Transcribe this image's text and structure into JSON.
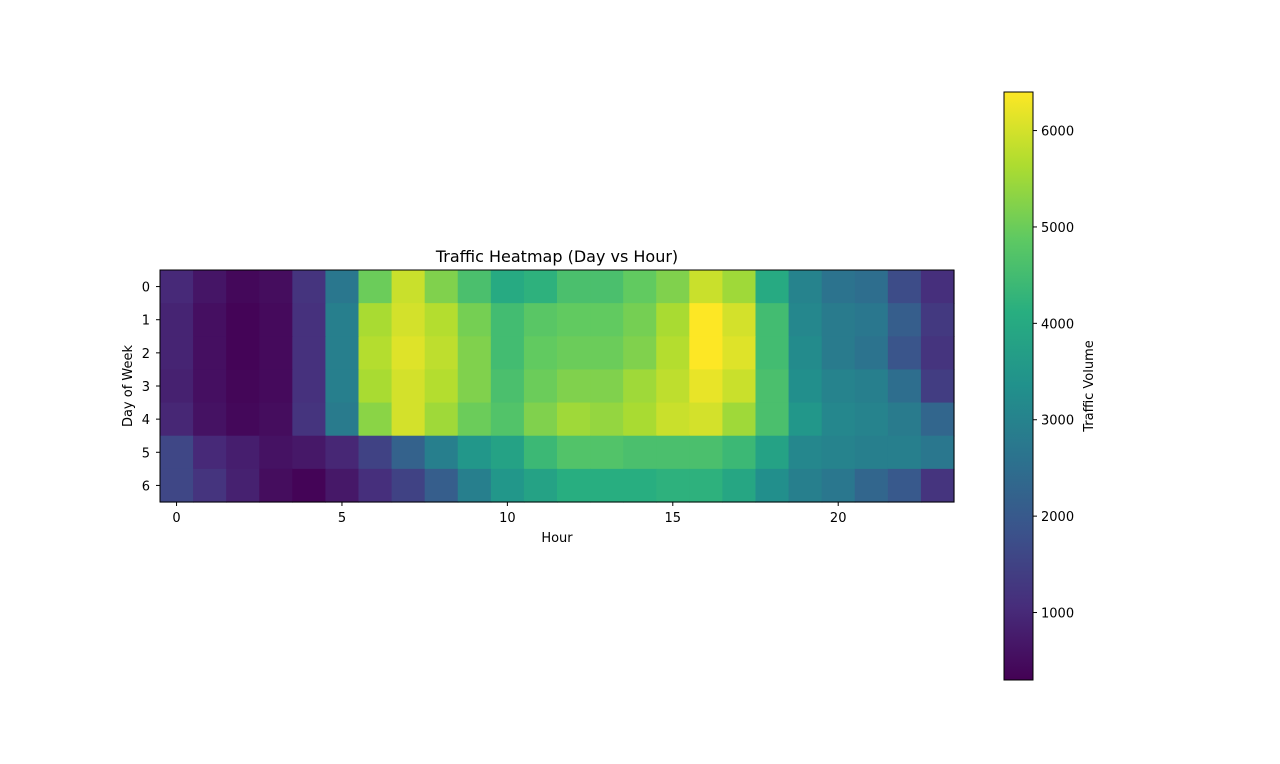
{
  "chart_data": {
    "type": "heatmap",
    "title": "Traffic Heatmap (Day vs Hour)",
    "xlabel": "Hour",
    "ylabel": "Day of Week",
    "x": [
      0,
      1,
      2,
      3,
      4,
      5,
      6,
      7,
      8,
      9,
      10,
      11,
      12,
      13,
      14,
      15,
      16,
      17,
      18,
      19,
      20,
      21,
      22,
      23
    ],
    "y": [
      0,
      1,
      2,
      3,
      4,
      5,
      6
    ],
    "x_ticks": [
      "0",
      "5",
      "10",
      "15",
      "20"
    ],
    "x_tick_values": [
      0,
      5,
      10,
      15,
      20
    ],
    "y_ticks": [
      "0",
      "1",
      "2",
      "3",
      "4",
      "5",
      "6"
    ],
    "values": [
      [
        1000,
        650,
        420,
        500,
        1200,
        2700,
        5000,
        5900,
        5200,
        4600,
        4000,
        4200,
        4600,
        4600,
        4900,
        5200,
        5900,
        5500,
        4000,
        3000,
        2600,
        2500,
        1700,
        1100
      ],
      [
        900,
        550,
        350,
        450,
        1150,
        2900,
        5600,
        6000,
        5700,
        5100,
        4500,
        4800,
        4900,
        4900,
        5100,
        5600,
        6400,
        6000,
        4500,
        3100,
        2800,
        2700,
        2100,
        1300
      ],
      [
        900,
        550,
        350,
        450,
        1150,
        2900,
        5700,
        6100,
        5800,
        5200,
        4500,
        4900,
        5000,
        5000,
        5200,
        5700,
        6400,
        6100,
        4500,
        3200,
        2800,
        2600,
        1900,
        1200
      ],
      [
        850,
        550,
        380,
        450,
        1150,
        2900,
        5600,
        6000,
        5700,
        5200,
        4600,
        5000,
        5200,
        5200,
        5500,
        5800,
        6200,
        5900,
        4600,
        3300,
        3000,
        2900,
        2500,
        1400
      ],
      [
        950,
        600,
        420,
        500,
        1200,
        2800,
        5300,
        6000,
        5500,
        5000,
        4700,
        5200,
        5500,
        5400,
        5600,
        5900,
        6000,
        5500,
        4600,
        3500,
        3100,
        3000,
        2800,
        2300
      ],
      [
        1600,
        1000,
        800,
        600,
        700,
        950,
        1500,
        2200,
        2900,
        3500,
        3800,
        4400,
        4700,
        4700,
        4600,
        4600,
        4600,
        4400,
        3800,
        3100,
        3000,
        2900,
        2900,
        2700
      ],
      [
        1600,
        1200,
        850,
        500,
        350,
        700,
        1100,
        1500,
        2100,
        2900,
        3500,
        3800,
        4100,
        4100,
        4100,
        4200,
        4200,
        3900,
        3300,
        2900,
        2700,
        2300,
        2000,
        1200
      ]
    ],
    "colormap": "viridis",
    "vmin": 300,
    "vmax": 6400,
    "colorbar": {
      "label": "Traffic Volume",
      "ticks": [
        1000,
        2000,
        3000,
        4000,
        5000,
        6000
      ],
      "tick_labels": [
        "1000",
        "2000",
        "3000",
        "4000",
        "5000",
        "6000"
      ]
    },
    "grid": false,
    "legend": "none"
  }
}
